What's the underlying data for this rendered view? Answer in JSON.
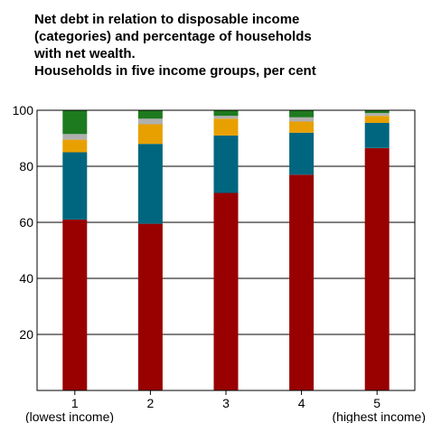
{
  "chart_data": {
    "type": "bar",
    "stacked": true,
    "title_lines": [
      "Net debt in relation to disposable income",
      "(categories) and percentage of households",
      "with net wealth.",
      "Households in five income groups, per cent"
    ],
    "xlabel": "",
    "ylabel": "",
    "ylim": [
      0,
      100
    ],
    "yticks": [
      20,
      40,
      60,
      80,
      100
    ],
    "grid": true,
    "categories": [
      "1",
      "2",
      "3",
      "4",
      "5"
    ],
    "category_sublabels": [
      "(lowest income)",
      "",
      "",
      "",
      "(highest income)"
    ],
    "series": [
      {
        "color": "#990000",
        "values": [
          61,
          59.5,
          70.5,
          77,
          86.5
        ]
      },
      {
        "color": "#00667f",
        "values": [
          24,
          28.5,
          20.5,
          15,
          9
        ]
      },
      {
        "color": "#e8a000",
        "values": [
          4.5,
          7,
          6,
          4,
          2.5
        ]
      },
      {
        "color": "#b0b0b0",
        "values": [
          2,
          2,
          1,
          1.5,
          1
        ]
      },
      {
        "color": "#1e7a1e",
        "values": [
          8.5,
          3,
          2,
          2.5,
          1
        ]
      }
    ]
  }
}
